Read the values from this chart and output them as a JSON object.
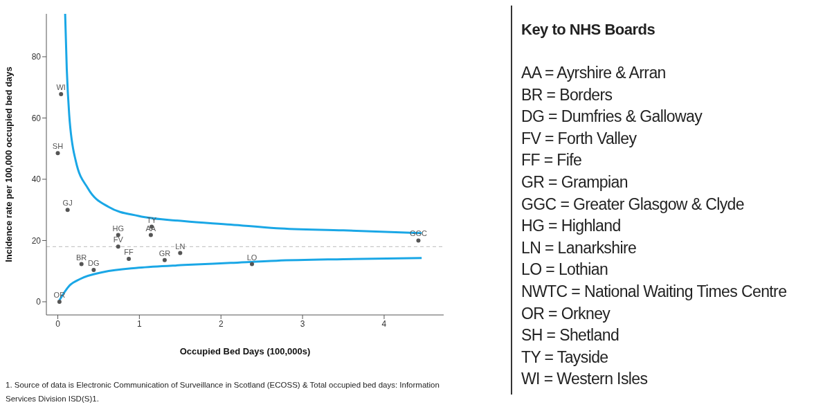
{
  "chart_data": {
    "type": "scatter",
    "xlabel": "Occupied Bed Days (100,000s)",
    "ylabel": "Incidence rate per 100,000 occupied bed days",
    "xlim": [
      -0.14,
      4.73
    ],
    "ylim": [
      -4.3,
      94
    ],
    "xticks": [
      0,
      1,
      2,
      3,
      4
    ],
    "yticks": [
      0,
      20,
      40,
      60,
      80
    ],
    "grid": false,
    "legend": false,
    "marker": "none",
    "series": [
      {
        "color": "#555555",
        "marker": "circle",
        "x": [
          0.04,
          0.0,
          0.12,
          0.74,
          1.15,
          1.14,
          0.74,
          0.87,
          1.31,
          1.5,
          0.29,
          0.44,
          2.38,
          0.02,
          4.42
        ],
        "values": [
          67.8,
          48.5,
          30,
          21.8,
          24.5,
          21.8,
          18,
          14,
          13.6,
          15.9,
          12.3,
          10.4,
          12.3,
          0,
          20
        ],
        "value_labels": [
          "WI",
          "SH",
          "GJ",
          "HG",
          "TY",
          "AA",
          "FV",
          "FF",
          "GR",
          "LN",
          "BR",
          "DG",
          "LO",
          "OR",
          "GGC"
        ]
      },
      {
        "type": "line",
        "color": "#1aa7e6",
        "x": [
          0.09,
          0.11,
          0.14,
          0.22,
          0.37,
          0.62,
          0.99,
          1.55,
          2.12,
          2.68,
          3.5,
          4.46
        ],
        "values": [
          94,
          76,
          61,
          46,
          37,
          31,
          28,
          26.3,
          25.2,
          24,
          23.3,
          22.4
        ]
      },
      {
        "type": "line",
        "color": "#1aa7e6",
        "x": [
          0.02,
          0.14,
          0.28,
          0.56,
          0.99,
          1.55,
          2.12,
          2.68,
          3.5,
          4.46
        ],
        "values": [
          0.5,
          5.2,
          7.5,
          9.7,
          11.1,
          12,
          12.7,
          13.4,
          13.9,
          14.3
        ]
      }
    ],
    "ref_lines": [
      {
        "axis": "y",
        "value": 18,
        "color": "#bbbbbb",
        "line_style": "dashed"
      }
    ],
    "annotations": [
      "Key to NHS Boards",
      "AA = Ayrshire & Arran",
      "BR = Borders",
      "DG = Dumfries & Galloway",
      "FV = Forth Valley",
      "FF = Fife",
      "GR = Grampian",
      "GGC = Greater Glasgow & Clyde",
      "HG = Highland",
      "LN = Lanarkshire",
      "LO = Lothian",
      "NWTC = National Waiting Times Centre",
      "OR = Orkney",
      "SH = Shetland",
      "TY = Tayside",
      "WI = Western Isles",
      "1.  Source of data is Electronic Communication of Surveillance in Scotland (ECOSS) & Total occupied bed days: Information Services Division ISD(S)1."
    ]
  }
}
